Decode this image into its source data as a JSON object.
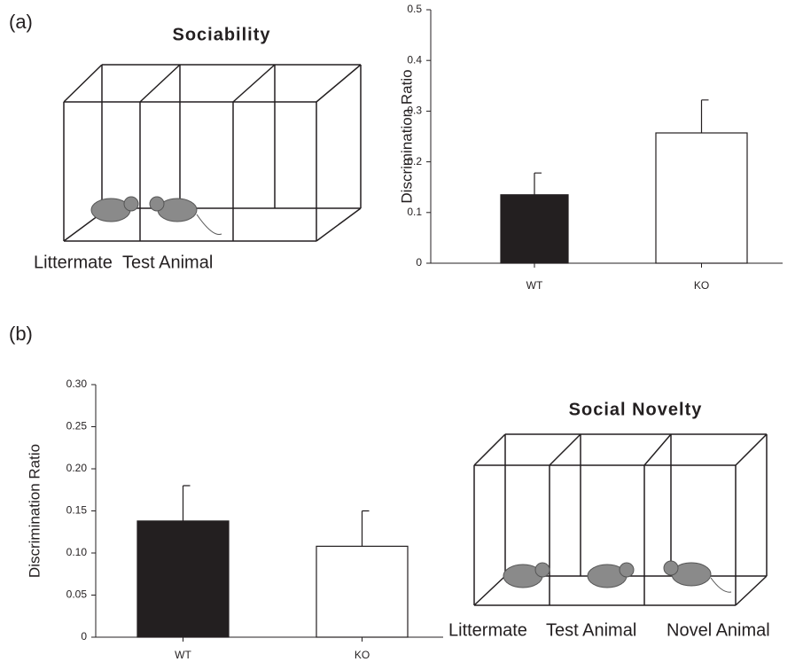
{
  "chart_data": [
    {
      "type": "bar",
      "ylabel": "Discrimination Ratio",
      "categories": [
        "WT",
        "KO"
      ],
      "values": [
        0.135,
        0.257
      ],
      "errors": [
        0.043,
        0.065
      ],
      "colors": [
        "#231f20",
        "#ffffff"
      ],
      "ylim": [
        0,
        0.5
      ],
      "yticks": [
        0,
        0.1,
        0.2,
        0.3,
        0.4,
        0.5
      ]
    },
    {
      "type": "bar",
      "ylabel": "Discrimination Ratio",
      "categories": [
        "WT",
        "KO"
      ],
      "values": [
        0.138,
        0.108
      ],
      "errors": [
        0.042,
        0.042
      ],
      "colors": [
        "#231f20",
        "#ffffff"
      ],
      "ylim": [
        0,
        0.3
      ],
      "yticks": [
        0,
        0.05,
        {
          "value": 0.1,
          "label": "0.10"
        },
        0.15,
        {
          "value": 0.2,
          "label": "0.20"
        },
        0.25,
        {
          "value": 0.3,
          "label": "0.30"
        }
      ]
    }
  ],
  "panels": [
    {
      "label": "(a)",
      "diagram_title": "Sociability",
      "diagram_labels": [
        "Littermate",
        "Test Animal"
      ]
    },
    {
      "label": "(b)",
      "diagram_title": "Social Novelty",
      "diagram_labels": [
        "Littermate",
        "Test Animal",
        "Novel Animal"
      ]
    }
  ]
}
